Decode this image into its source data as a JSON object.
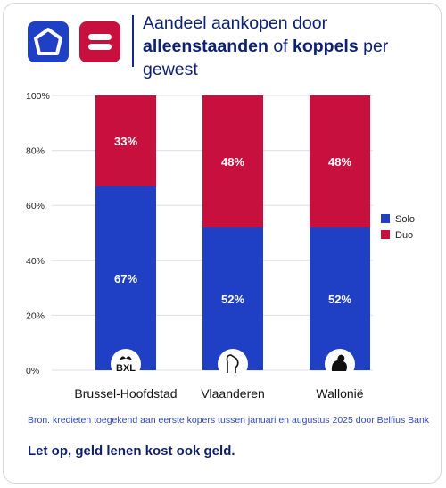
{
  "header": {
    "title_part1": "Aandeel aankopen door",
    "title_bold1": "alleenstaanden",
    "title_part2": "of",
    "title_bold2": "koppels",
    "title_part3": "per gewest"
  },
  "chart_data": {
    "type": "bar",
    "stacked": true,
    "categories": [
      "Brussel-Hoofdstad",
      "Vlaanderen",
      "Wallonië"
    ],
    "series": [
      {
        "name": "Solo",
        "values": [
          67,
          52,
          52
        ],
        "color": "#1f3fc4"
      },
      {
        "name": "Duo",
        "values": [
          33,
          48,
          48
        ],
        "color": "#c8103e"
      }
    ],
    "ylim": [
      0,
      100
    ],
    "yticks": [
      "0%",
      "20%",
      "40%",
      "60%",
      "80%",
      "100%"
    ],
    "data_labels": {
      "Solo": [
        "67%",
        "52%",
        "52%"
      ],
      "Duo": [
        "33%",
        "48%",
        "48%"
      ]
    },
    "region_badges": [
      "BXL",
      "lion-icon",
      "rooster-icon"
    ],
    "grid": true,
    "legend_position": "right"
  },
  "footer": {
    "source": "Bron. kredieten toegekend aan eerste kopers tussen januari en augustus 2025 door Belfius Bank",
    "warning": "Let op, geld lenen kost ook geld."
  }
}
